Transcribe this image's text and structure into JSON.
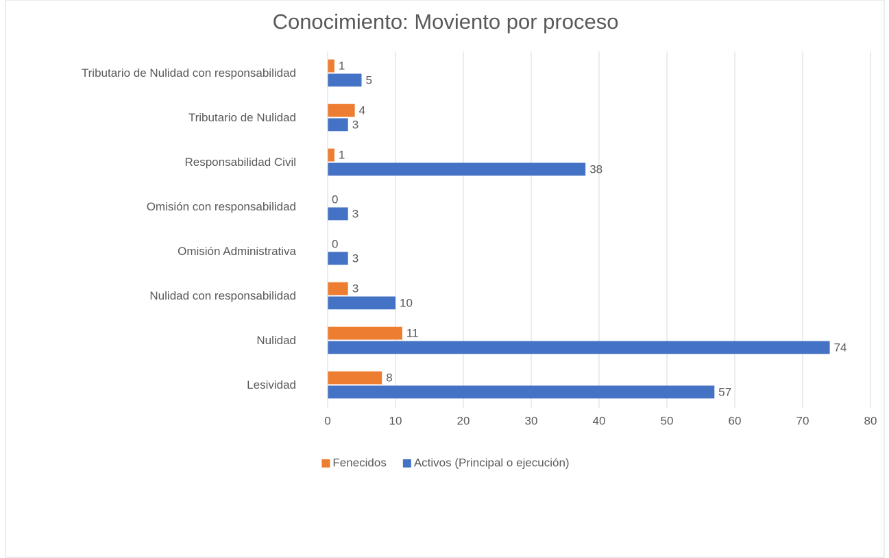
{
  "chart_data": {
    "type": "barh",
    "title": "Conocimiento: Moviento por proceso",
    "categories": [
      "Tributario de Nulidad con responsabilidad",
      "Tributario de Nulidad",
      "Responsabilidad Civil",
      "Omisión con responsabilidad",
      "Omisión Administrativa",
      "Nulidad con responsabilidad",
      "Nulidad",
      "Lesividad"
    ],
    "series": [
      {
        "name": "Fenecidos",
        "color": "#ed7d31",
        "values": [
          1,
          4,
          1,
          0,
          0,
          3,
          11,
          8
        ]
      },
      {
        "name": "Activos (Principal o ejecución)",
        "color": "#4472c4",
        "values": [
          5,
          3,
          38,
          3,
          3,
          10,
          74,
          57
        ]
      }
    ],
    "xlim": [
      0,
      80
    ],
    "xticks": [
      0,
      10,
      20,
      30,
      40,
      50,
      60,
      70,
      80
    ],
    "grid": true,
    "legend": "bottom"
  }
}
